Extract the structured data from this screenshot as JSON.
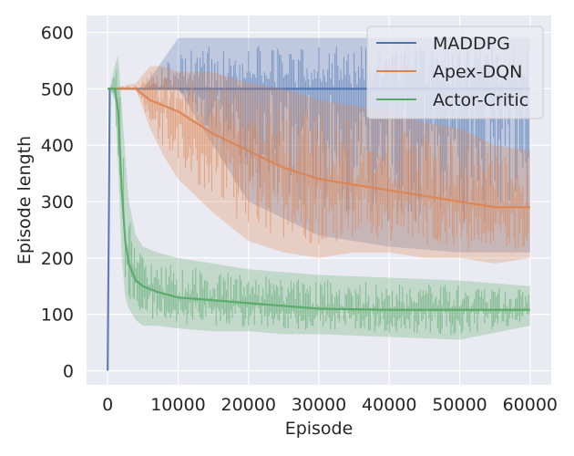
{
  "chart_data": {
    "type": "line",
    "title": "",
    "xlabel": "Episode",
    "ylabel": "Episode length",
    "xlim": [
      -3000,
      63000
    ],
    "ylim": [
      -25,
      630
    ],
    "xticks": [
      0,
      10000,
      20000,
      30000,
      40000,
      50000,
      60000
    ],
    "xtick_labels": [
      "0",
      "10000",
      "20000",
      "30000",
      "40000",
      "50000",
      "60000"
    ],
    "yticks": [
      0,
      100,
      200,
      300,
      400,
      500,
      600
    ],
    "ytick_labels": [
      "0",
      "100",
      "200",
      "300",
      "400",
      "500",
      "600"
    ],
    "grid": true,
    "legend_position": "top-right",
    "series": [
      {
        "name": "MADDPG",
        "color": "#4c72b0",
        "x": [
          0,
          300,
          1000,
          5000,
          10000,
          20000,
          30000,
          40000,
          50000,
          60000
        ],
        "mean": [
          0,
          500,
          500,
          500,
          500,
          500,
          500,
          500,
          500,
          500
        ],
        "band_low": [
          0,
          500,
          500,
          500,
          500,
          300,
          240,
          220,
          210,
          210
        ],
        "band_high": [
          0,
          500,
          500,
          500,
          590,
          590,
          590,
          590,
          590,
          590
        ]
      },
      {
        "name": "Apex-DQN",
        "color": "#dd8452",
        "x": [
          0,
          300,
          4000,
          6000,
          8000,
          10000,
          15000,
          20000,
          25000,
          30000,
          35000,
          40000,
          45000,
          50000,
          55000,
          60000
        ],
        "mean": [
          500,
          500,
          500,
          480,
          470,
          460,
          420,
          390,
          360,
          340,
          330,
          320,
          310,
          300,
          290,
          290
        ],
        "band_low": [
          500,
          500,
          500,
          430,
          380,
          340,
          280,
          230,
          210,
          200,
          210,
          210,
          200,
          200,
          190,
          200
        ],
        "band_high": [
          500,
          500,
          510,
          540,
          540,
          530,
          530,
          510,
          500,
          480,
          470,
          460,
          440,
          430,
          400,
          390
        ]
      },
      {
        "name": "Actor-Critic",
        "color": "#55a868",
        "x": [
          0,
          300,
          1000,
          1500,
          2000,
          2500,
          3000,
          4000,
          5000,
          7000,
          10000,
          15000,
          20000,
          25000,
          30000,
          40000,
          50000,
          60000
        ],
        "mean": [
          500,
          500,
          500,
          460,
          320,
          230,
          190,
          160,
          150,
          140,
          130,
          125,
          120,
          115,
          110,
          108,
          108,
          108
        ],
        "band_low": [
          500,
          500,
          480,
          360,
          200,
          130,
          110,
          90,
          80,
          80,
          75,
          70,
          70,
          65,
          65,
          60,
          55,
          80
        ],
        "band_high": [
          500,
          500,
          540,
          560,
          470,
          380,
          300,
          240,
          220,
          210,
          200,
          190,
          180,
          175,
          170,
          165,
          160,
          150
        ]
      }
    ]
  }
}
